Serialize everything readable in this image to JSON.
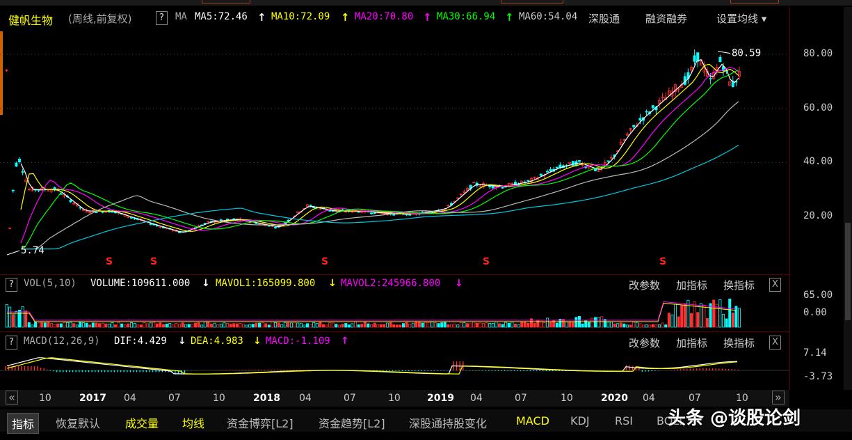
{
  "stock": {
    "name": "健帆生物",
    "period": "(周线,前复权)",
    "help_icon": "?",
    "ma_label": "MA",
    "ma5": "MA5:72.46",
    "ma10": "MA10:72.09",
    "ma20": "MA20:70.80",
    "ma30": "MA30:66.94",
    "ma60": "MA60:54.04",
    "arrow_up": "↑",
    "arrow_down": "↓",
    "link_sgt": "深股通",
    "link_rzrq": "融资融券",
    "setting": "设置均线 ▾"
  },
  "colors": {
    "ma5": "#ffffff",
    "ma10": "#ffff00",
    "ma20": "#ff00ff",
    "ma30": "#00ff00",
    "ma60": "#bbbbbb",
    "ma120": "#00c8e0",
    "up": "#ff3030",
    "down": "#00ffff"
  },
  "price_axis": {
    "ticks": [
      "80.00",
      "60.00",
      "40.00",
      "20.00"
    ],
    "high_label": "80.59",
    "low_label": "5.74"
  },
  "vol": {
    "name": "VOL(5,10)",
    "volume": "VOLUME:109611.000",
    "mavol1": "MAVOL1:165099.800",
    "mavol2": "MAVOL2:245966.800",
    "ticks": [
      "65.00",
      "0.00"
    ]
  },
  "macd": {
    "name": "MACD(12,26,9)",
    "dif": "DIF:4.429",
    "dea": "DEA:4.983",
    "macd": "MACD:-1.109",
    "ticks": [
      "7.14",
      "-3.73"
    ]
  },
  "panel_actions": {
    "change_params": "改参数",
    "add_indicator": "加指标",
    "switch_indicator": "换指标",
    "close": "X"
  },
  "time_axis": {
    "nav_prev": "«",
    "nav_next": "»",
    "labels": [
      {
        "t": "10",
        "year": false
      },
      {
        "t": "2017",
        "year": true
      },
      {
        "t": "04",
        "year": false
      },
      {
        "t": "07",
        "year": false
      },
      {
        "t": "10",
        "year": false
      },
      {
        "t": "2018",
        "year": true
      },
      {
        "t": "04",
        "year": false
      },
      {
        "t": "07",
        "year": false
      },
      {
        "t": "10",
        "year": false
      },
      {
        "t": "2019",
        "year": true
      },
      {
        "t": "04",
        "year": false
      },
      {
        "t": "07",
        "year": false
      },
      {
        "t": "10",
        "year": false
      },
      {
        "t": "2020",
        "year": true
      },
      {
        "t": "04",
        "year": false
      },
      {
        "t": "07",
        "year": false
      },
      {
        "t": "10",
        "year": false
      }
    ]
  },
  "tabs": [
    {
      "label": "指标",
      "color": "#ffffff",
      "active": true
    },
    {
      "label": "恢复默认",
      "color": "#bbbbbb",
      "active": false
    },
    {
      "label": "成交量",
      "color": "#ffff00",
      "active": false
    },
    {
      "label": "均线",
      "color": "#ffff00",
      "active": false
    },
    {
      "label": "资金博弈[L2]",
      "color": "#bbbbbb",
      "active": false
    },
    {
      "label": "资金趋势[L2]",
      "color": "#bbbbbb",
      "active": false
    },
    {
      "label": "深股通持股变化",
      "color": "#bbbbbb",
      "active": false
    },
    {
      "label": "MACD",
      "color": "#ffff00",
      "active": false
    },
    {
      "label": "KDJ",
      "color": "#bbbbbb",
      "active": false
    },
    {
      "label": "RSI",
      "color": "#bbbbbb",
      "active": false
    },
    {
      "label": "BOLL",
      "color": "#bbbbbb",
      "active": false
    }
  ],
  "signal_mark": "S",
  "watermark": "头条 @谈股论剑"
}
